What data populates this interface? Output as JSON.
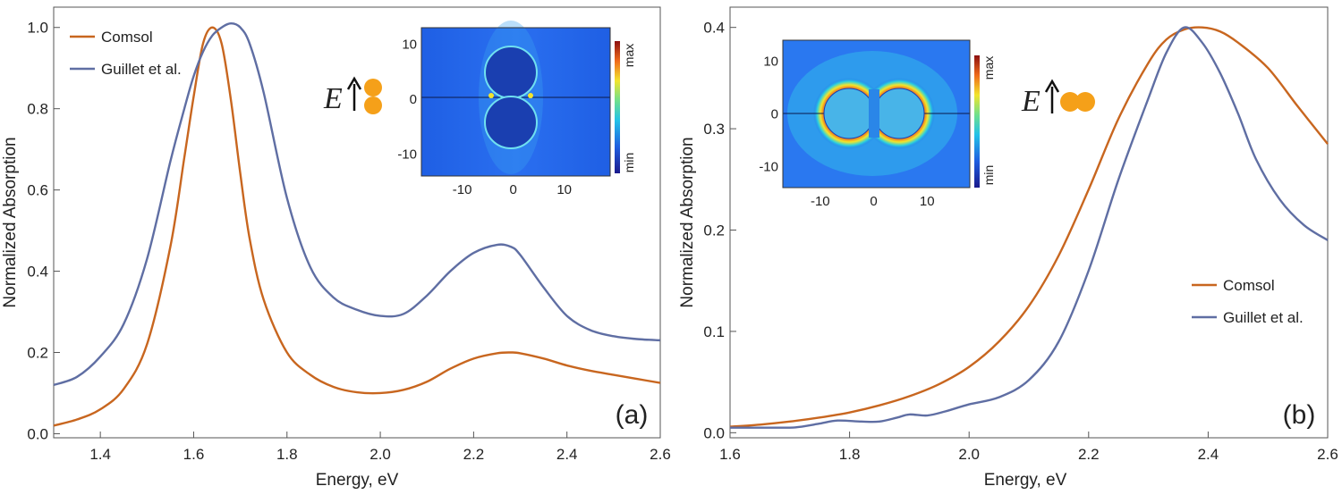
{
  "colors": {
    "comsol": "#c8661f",
    "guillet": "#5f6ea3",
    "particle": "#f5a019",
    "field_bg": "#1f5ee0"
  },
  "chart_data": [
    {
      "type": "line",
      "panel_label": "(a)",
      "xlabel": "Energy, eV",
      "ylabel": "Normalized Absorption",
      "xlim": [
        1.3,
        2.6
      ],
      "ylim": [
        -0.01,
        1.05
      ],
      "xticks": [
        1.4,
        1.6,
        1.8,
        2.0,
        2.2,
        2.4,
        2.6
      ],
      "xtick_labels": [
        "1.4",
        "1.6",
        "1.8",
        "2.0",
        "2.2",
        "2.4",
        "2.6"
      ],
      "yticks": [
        0.0,
        0.2,
        0.4,
        0.6,
        0.8,
        1.0
      ],
      "ytick_labels": [
        "0.0",
        "0.2",
        "0.4",
        "0.6",
        "0.8",
        "1.0"
      ],
      "legend_position": "top-left",
      "series": [
        {
          "name": "Comsol",
          "color": "#c8661f",
          "x": [
            1.3,
            1.35,
            1.4,
            1.45,
            1.5,
            1.55,
            1.58,
            1.6,
            1.62,
            1.64,
            1.66,
            1.68,
            1.7,
            1.72,
            1.75,
            1.8,
            1.85,
            1.9,
            1.95,
            2.0,
            2.05,
            2.1,
            2.15,
            2.2,
            2.25,
            2.28,
            2.3,
            2.35,
            2.4,
            2.45,
            2.5,
            2.55,
            2.6
          ],
          "y": [
            0.02,
            0.035,
            0.06,
            0.11,
            0.22,
            0.46,
            0.68,
            0.83,
            0.96,
            1.0,
            0.96,
            0.82,
            0.64,
            0.48,
            0.33,
            0.2,
            0.145,
            0.115,
            0.102,
            0.1,
            0.108,
            0.128,
            0.16,
            0.185,
            0.198,
            0.2,
            0.198,
            0.185,
            0.168,
            0.155,
            0.145,
            0.135,
            0.125
          ]
        },
        {
          "name": "Guillet et al.",
          "color": "#5f6ea3",
          "x": [
            1.3,
            1.35,
            1.4,
            1.45,
            1.5,
            1.55,
            1.58,
            1.6,
            1.62,
            1.64,
            1.66,
            1.68,
            1.7,
            1.72,
            1.75,
            1.8,
            1.85,
            1.9,
            1.95,
            2.0,
            2.05,
            2.1,
            2.15,
            2.2,
            2.25,
            2.28,
            2.3,
            2.35,
            2.4,
            2.45,
            2.5,
            2.55,
            2.6
          ],
          "y": [
            0.12,
            0.14,
            0.19,
            0.27,
            0.43,
            0.67,
            0.8,
            0.88,
            0.94,
            0.98,
            1.0,
            1.01,
            1.0,
            0.96,
            0.84,
            0.58,
            0.41,
            0.335,
            0.305,
            0.29,
            0.295,
            0.34,
            0.4,
            0.445,
            0.465,
            0.46,
            0.44,
            0.36,
            0.29,
            0.255,
            0.24,
            0.233,
            0.23
          ]
        }
      ],
      "inset": {
        "xticks": [
          -10,
          0,
          10
        ],
        "yticks": [
          10,
          0,
          -10
        ],
        "xtick_labels": [
          "-10",
          "0",
          "10"
        ],
        "ytick_labels": [
          "10",
          "0",
          "-10"
        ],
        "colorbar_max": "max",
        "colorbar_min": "min",
        "field_symbol": "E",
        "particle_orientation": "vertical"
      }
    },
    {
      "type": "line",
      "panel_label": "(b)",
      "xlabel": "Energy, eV",
      "ylabel": "Normalized Absorption",
      "xlim": [
        1.6,
        2.6
      ],
      "ylim": [
        -0.005,
        0.42
      ],
      "xticks": [
        1.6,
        1.8,
        2.0,
        2.2,
        2.4,
        2.6
      ],
      "xtick_labels": [
        "1.6",
        "1.8",
        "2.0",
        "2.2",
        "2.4",
        "2.6"
      ],
      "yticks": [
        0.0,
        0.1,
        0.2,
        0.3,
        0.4
      ],
      "ytick_labels": [
        "0.0",
        "0.1",
        "0.2",
        "0.3",
        "0.4"
      ],
      "legend_position": "bottom-right",
      "series": [
        {
          "name": "Comsol",
          "color": "#c8661f",
          "x": [
            1.6,
            1.65,
            1.7,
            1.75,
            1.8,
            1.85,
            1.9,
            1.95,
            2.0,
            2.05,
            2.1,
            2.15,
            2.2,
            2.25,
            2.3,
            2.33,
            2.36,
            2.39,
            2.42,
            2.45,
            2.5,
            2.55,
            2.6
          ],
          "y": [
            0.006,
            0.008,
            0.011,
            0.015,
            0.02,
            0.027,
            0.036,
            0.048,
            0.065,
            0.09,
            0.125,
            0.175,
            0.24,
            0.31,
            0.365,
            0.388,
            0.398,
            0.4,
            0.396,
            0.385,
            0.36,
            0.322,
            0.285
          ]
        },
        {
          "name": "Guillet et al.",
          "color": "#5f6ea3",
          "x": [
            1.6,
            1.65,
            1.7,
            1.72,
            1.75,
            1.78,
            1.82,
            1.85,
            1.88,
            1.9,
            1.93,
            1.96,
            2.0,
            2.05,
            2.1,
            2.15,
            2.2,
            2.25,
            2.3,
            2.33,
            2.36,
            2.39,
            2.42,
            2.45,
            2.48,
            2.52,
            2.56,
            2.6
          ],
          "y": [
            0.005,
            0.005,
            0.005,
            0.006,
            0.009,
            0.012,
            0.011,
            0.011,
            0.015,
            0.018,
            0.017,
            0.021,
            0.028,
            0.035,
            0.052,
            0.09,
            0.16,
            0.25,
            0.33,
            0.375,
            0.4,
            0.385,
            0.355,
            0.315,
            0.27,
            0.23,
            0.205,
            0.19
          ]
        }
      ],
      "inset": {
        "xticks": [
          -10,
          0,
          10
        ],
        "yticks": [
          10,
          0,
          -10
        ],
        "xtick_labels": [
          "-10",
          "0",
          "10"
        ],
        "ytick_labels": [
          "10",
          "0",
          "-10"
        ],
        "colorbar_max": "max",
        "colorbar_min": "min",
        "field_symbol": "E",
        "particle_orientation": "horizontal"
      }
    }
  ]
}
